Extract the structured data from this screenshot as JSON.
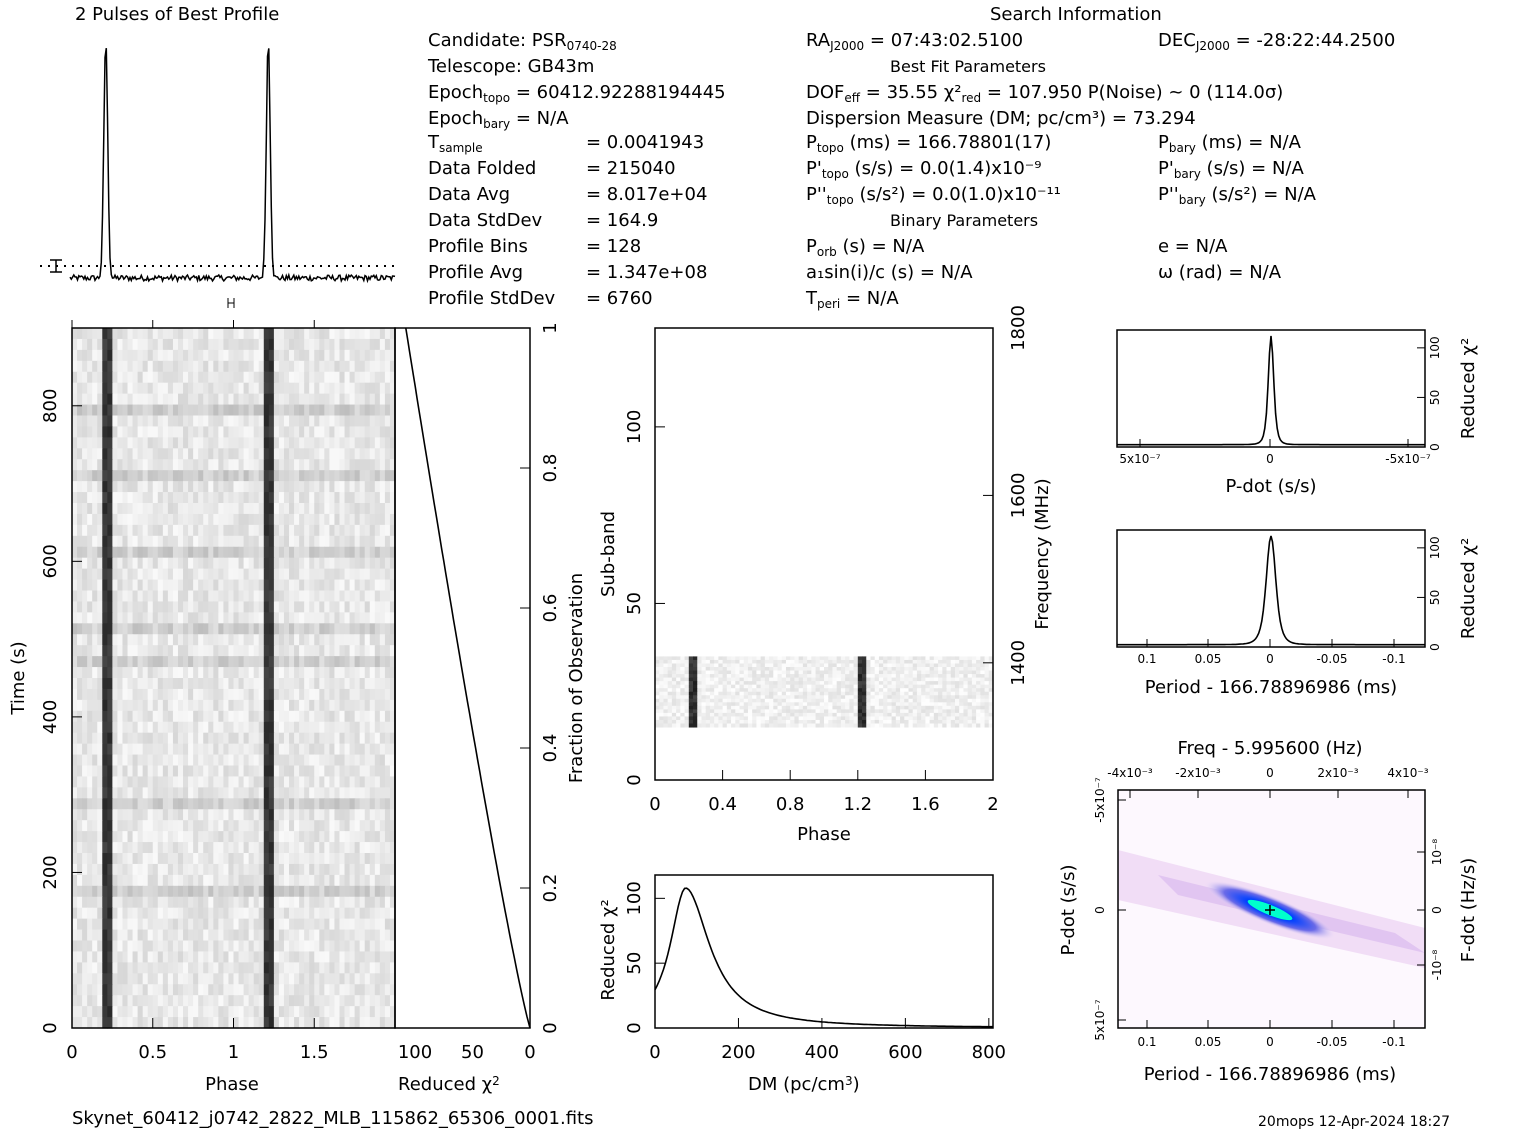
{
  "title_profile": "2 Pulses of Best Profile",
  "title_search": "Search Information",
  "best_fit_header": "Best Fit Parameters",
  "binary_header": "Binary Parameters",
  "footer_file": "Skynet_60412_j0742_2822_MLB_115862_65306_0001.fits",
  "footer_stamp": "20mops 12-Apr-2024 18:27",
  "info_left": [
    [
      "Candidate:  PSR_0740-28",
      ""
    ],
    [
      "Telescope:  GB43m",
      ""
    ],
    [
      "Epoch_topo = 60412.92288194445",
      ""
    ],
    [
      "Epoch_bary = N/A",
      ""
    ],
    [
      "T_sample",
      "=  0.0041943"
    ],
    [
      "Data Folded",
      "=  215040"
    ],
    [
      "Data Avg",
      "=  8.017e+04"
    ],
    [
      "Data StdDev",
      "=  164.9"
    ],
    [
      "Profile Bins",
      "=  128"
    ],
    [
      "Profile Avg",
      "=  1.347e+08"
    ],
    [
      "Profile StdDev",
      "=  6760"
    ]
  ],
  "info_mid": [
    "RA_J2000 = 07:43:02.5100",
    "DOF_eff = 35.55  χ²_red = 107.950  P(Noise) ~ 0   (114.0σ)",
    "Dispersion Measure (DM; pc/cm³) = 73.294",
    "P_topo (ms) =  166.78801(17)",
    "P'_topo (s/s) = 0.0(1.4)x10⁻⁹",
    "P''_topo (s/s²) = 0.0(1.0)x10⁻¹¹",
    "P_orb (s) = N/A",
    "a₁sin(i)/c (s) = N/A",
    "T_peri = N/A"
  ],
  "info_right": [
    "DEC_J2000 = -28:22:44.2500",
    "P_bary (ms) = N/A",
    "P'_bary (s/s) = N/A",
    "P''_bary (s/s²) = N/A",
    "e = N/A",
    "ω (rad) = N/A"
  ],
  "chart_data": [
    {
      "type": "line",
      "name": "profile",
      "x_range": [
        0,
        2
      ],
      "peaks_phase": [
        0.22,
        1.22
      ]
    },
    {
      "type": "heatmap",
      "name": "time-phase",
      "xlabel": "Phase",
      "ylabel": "Time (s)",
      "xlim": [
        0,
        2
      ],
      "ylim": [
        0,
        900
      ],
      "x_ticks": [
        "0",
        "0.5",
        "1",
        "1.5"
      ],
      "y_ticks": [
        "0",
        "200",
        "400",
        "600",
        "800"
      ],
      "pulse_phase": [
        0.22,
        1.22
      ]
    },
    {
      "type": "line",
      "name": "reduced-chi2-vs-fraction",
      "xlabel": "Reduced χ²",
      "ylabel": "Fraction of Observation",
      "x_ticks": [
        "100",
        "50",
        "0"
      ],
      "y_ticks": [
        "0",
        "0.2",
        "0.4",
        "0.6",
        "0.8",
        "1"
      ]
    },
    {
      "type": "heatmap",
      "name": "subband-phase",
      "xlabel": "Phase",
      "ylabel": "Sub-band",
      "y2label": "Frequency (MHz)",
      "x_ticks": [
        "0",
        "0.4",
        "0.8",
        "1.2",
        "1.6",
        "2"
      ],
      "y_ticks": [
        "0",
        "50",
        "100"
      ],
      "y2_ticks": [
        "1400",
        "1600",
        "1800"
      ],
      "band_subband": [
        15,
        35
      ],
      "pulse_phase": [
        0.22,
        1.22
      ]
    },
    {
      "type": "line",
      "name": "dm-curve",
      "xlabel": "DM (pc/cm³)",
      "ylabel": "Reduced χ²",
      "x_ticks": [
        "0",
        "200",
        "400",
        "600",
        "800"
      ],
      "y_ticks": [
        "0",
        "50",
        "100"
      ],
      "peak_dm": 73.294,
      "peak_value": 107.95
    },
    {
      "type": "line",
      "name": "pdot-curve",
      "xlabel": "P-dot (s/s)",
      "ylabel": "Reduced χ²",
      "x_ticks": [
        "5x10⁻⁷",
        "0",
        "-5x10⁻⁷"
      ],
      "y_ticks": [
        "0",
        "50",
        "100"
      ]
    },
    {
      "type": "line",
      "name": "period-curve",
      "xlabel": "Period - 166.78896986 (ms)",
      "ylabel": "Reduced χ²",
      "x_ticks": [
        "0.1",
        "0.05",
        "0",
        "-0.05",
        "-0.1"
      ],
      "y_ticks": [
        "0",
        "50",
        "100"
      ]
    },
    {
      "type": "heatmap",
      "name": "period-pdot",
      "title": "Freq - 5.995600 (Hz)",
      "xlabel": "Period - 166.78896986 (ms)",
      "ylabel": "P-dot (s/s)",
      "y2label": "F-dot (Hz/s)",
      "x_ticks": [
        "0.1",
        "0.05",
        "0",
        "-0.05",
        "-0.1"
      ],
      "x2_ticks": [
        "-4x10⁻³",
        "-2x10⁻³",
        "0",
        "2x10⁻³",
        "4x10⁻³"
      ],
      "y_ticks": [
        "5x10⁻⁷",
        "0",
        "-5x10⁻⁷"
      ],
      "y2_ticks": [
        "-10⁻⁸",
        "0",
        "10⁻⁸"
      ]
    }
  ]
}
